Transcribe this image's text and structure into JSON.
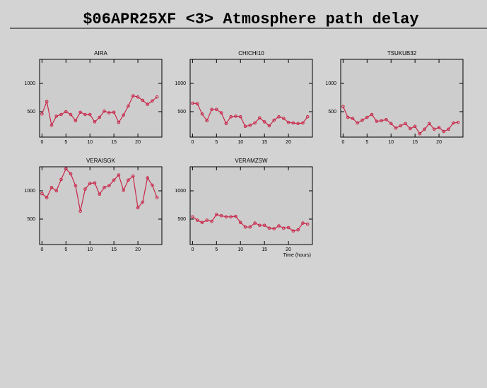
{
  "title": "$06APR25XF <3>  Atmosphere path delay",
  "chart_data": [
    {
      "type": "line",
      "title": "AIRA",
      "x": [
        0,
        1,
        2,
        3,
        4,
        5,
        6,
        7,
        8,
        9,
        10,
        11,
        12,
        13,
        14,
        15,
        16,
        17,
        18,
        19,
        20,
        21,
        22,
        23,
        24
      ],
      "values": [
        460,
        680,
        260,
        420,
        450,
        500,
        450,
        340,
        490,
        450,
        450,
        320,
        400,
        510,
        480,
        490,
        310,
        440,
        600,
        780,
        760,
        700,
        630,
        690,
        760
      ],
      "color": "#c8284a",
      "xlim": [
        -0.5,
        25
      ],
      "ylim": [
        50,
        1425
      ],
      "xticks": [
        0,
        5,
        10,
        15,
        20
      ],
      "yticks": [
        500,
        1000
      ]
    },
    {
      "type": "line",
      "title": "CHICHI10",
      "x": [
        0,
        1,
        2,
        3,
        4,
        5,
        6,
        7,
        8,
        9,
        10,
        11,
        12,
        13,
        14,
        15,
        16,
        17,
        18,
        19,
        20,
        21,
        22,
        23,
        24
      ],
      "values": [
        650,
        640,
        460,
        340,
        540,
        540,
        480,
        290,
        410,
        420,
        410,
        240,
        260,
        300,
        390,
        320,
        250,
        350,
        410,
        380,
        310,
        300,
        290,
        300,
        410
      ],
      "color": "#c8284a",
      "xlim": [
        -0.5,
        25
      ],
      "ylim": [
        50,
        1425
      ],
      "xticks": [
        0,
        5,
        10,
        15,
        20
      ],
      "yticks": [
        500,
        1000
      ]
    },
    {
      "type": "line",
      "title": "TSUKUB32",
      "x": [
        0,
        1,
        2,
        3,
        4,
        5,
        6,
        7,
        8,
        9,
        10,
        11,
        12,
        13,
        14,
        15,
        16,
        17,
        18,
        19,
        20,
        21,
        22,
        23,
        24
      ],
      "values": [
        590,
        400,
        380,
        300,
        350,
        400,
        450,
        330,
        340,
        360,
        290,
        210,
        250,
        290,
        200,
        240,
        110,
        190,
        290,
        190,
        220,
        150,
        190,
        300,
        310
      ],
      "color": "#c8284a",
      "xlim": [
        -0.5,
        25
      ],
      "ylim": [
        50,
        1425
      ],
      "xticks": [
        0,
        5,
        10,
        15,
        20
      ],
      "yticks": [
        500,
        1000
      ]
    },
    {
      "type": "line",
      "title": "VERAISGK",
      "x": [
        0,
        1,
        2,
        3,
        4,
        5,
        6,
        7,
        8,
        9,
        10,
        11,
        12,
        13,
        14,
        15,
        16,
        17,
        18,
        19,
        20,
        21,
        22,
        23,
        24
      ],
      "values": [
        950,
        880,
        1060,
        1000,
        1200,
        1390,
        1300,
        1090,
        640,
        1030,
        1130,
        1140,
        940,
        1060,
        1090,
        1190,
        1280,
        1010,
        1190,
        1260,
        700,
        800,
        1230,
        1100,
        880
      ],
      "color": "#c8284a",
      "xlim": [
        -0.5,
        25
      ],
      "ylim": [
        50,
        1425
      ],
      "xticks": [
        0,
        5,
        10,
        15,
        20
      ],
      "yticks": [
        500,
        1000
      ]
    },
    {
      "type": "line",
      "title": "VERAMZSW",
      "xlabel": "Time (hours)",
      "x": [
        0,
        1,
        2,
        3,
        4,
        5,
        6,
        7,
        8,
        9,
        10,
        11,
        12,
        13,
        14,
        15,
        16,
        17,
        18,
        19,
        20,
        21,
        22,
        23,
        24
      ],
      "values": [
        540,
        480,
        440,
        480,
        460,
        580,
        560,
        540,
        540,
        550,
        440,
        360,
        360,
        430,
        390,
        390,
        340,
        330,
        380,
        340,
        350,
        290,
        310,
        430,
        410
      ],
      "color": "#c8284a",
      "xlim": [
        -0.5,
        25
      ],
      "ylim": [
        50,
        1425
      ],
      "xticks": [
        0,
        5,
        10,
        15,
        20
      ],
      "yticks": [
        500,
        1000
      ]
    }
  ]
}
